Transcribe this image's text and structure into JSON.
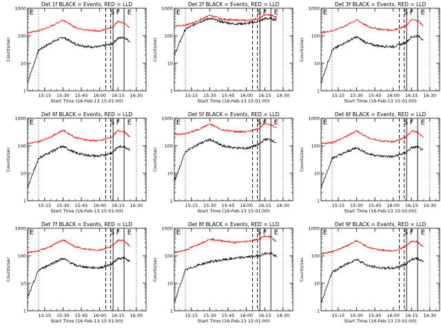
{
  "figure": {
    "rows": 3,
    "cols": 3,
    "ylabel": "Counts/sec",
    "xlabel": "Start Time (16-Feb-13 15:01:00)",
    "y_scale": "log",
    "ylim": [
      1,
      1000
    ],
    "y_ticks": [
      1,
      10,
      100,
      1000
    ],
    "y_tick_labels": [
      "1",
      "10",
      "100",
      "1000"
    ],
    "x_ticks": [
      "15:15",
      "15:30",
      "15:45",
      "16:00",
      "16:15",
      "16:30"
    ],
    "markers": [
      "E",
      "S",
      "F",
      "E"
    ],
    "colors": {
      "events": "#000000",
      "lld": "#ff0000",
      "axes": "#000000"
    }
  },
  "chart_data": [
    {
      "type": "line",
      "title": "Det  1f BLACK = Events, RED = LLD",
      "ylabel": "Counts/sec",
      "xlabel": "Start Time (16-Feb-13 15:01:00)",
      "y_scale": "log",
      "ylim": [
        1,
        1000
      ],
      "x": [
        "15:01",
        "15:10",
        "15:20",
        "15:30",
        "15:40",
        "15:50",
        "16:00",
        "16:10",
        "16:15",
        "16:20",
        "16:25"
      ],
      "series": [
        {
          "name": "Events",
          "values": [
            2,
            30,
            55,
            90,
            50,
            40,
            40,
            50,
            80,
            90,
            60
          ]
        },
        {
          "name": "LLD",
          "values": [
            130,
            150,
            220,
            380,
            200,
            160,
            150,
            200,
            330,
            300,
            190
          ]
        }
      ]
    },
    {
      "type": "line",
      "title": "Det  2f BLACK = Events, RED = LLD",
      "ylabel": "Counts/sec",
      "xlabel": "Start Time (16-Feb-13 15:01:00)",
      "y_scale": "log",
      "ylim": [
        1,
        1000
      ],
      "x": [
        "15:01",
        "15:10",
        "15:20",
        "15:30",
        "15:40",
        "15:50",
        "16:00",
        "16:10",
        "16:15",
        "16:20",
        "16:25"
      ],
      "series": [
        {
          "name": "Events",
          "values": [
            20,
            170,
            300,
            430,
            320,
            270,
            280,
            330,
            420,
            420,
            380
          ]
        },
        {
          "name": "LLD",
          "values": [
            230,
            240,
            340,
            560,
            400,
            370,
            360,
            420,
            580,
            560,
            460
          ]
        }
      ]
    },
    {
      "type": "line",
      "title": "Det  3f BLACK = Events, RED = LLD",
      "ylabel": "Counts/sec",
      "xlabel": "Start Time (16-Feb-13 15:01:00)",
      "y_scale": "log",
      "ylim": [
        1,
        1000
      ],
      "x": [
        "15:01",
        "15:10",
        "15:20",
        "15:30",
        "15:40",
        "15:50",
        "16:00",
        "16:10",
        "16:15",
        "16:20",
        "16:25"
      ],
      "series": [
        {
          "name": "Events",
          "values": [
            2,
            30,
            55,
            90,
            50,
            42,
            40,
            55,
            90,
            100,
            70
          ]
        },
        {
          "name": "LLD",
          "values": [
            130,
            150,
            220,
            380,
            210,
            170,
            160,
            220,
            380,
            360,
            220
          ]
        }
      ]
    },
    {
      "type": "line",
      "title": "Det  4f BLACK = Events, RED = LLD",
      "ylabel": "Counts/sec",
      "xlabel": "Start Time (16-Feb-13 15:01:00)",
      "y_scale": "log",
      "ylim": [
        1,
        1000
      ],
      "x": [
        "15:01",
        "15:10",
        "15:20",
        "15:30",
        "15:40",
        "15:50",
        "16:00",
        "16:10",
        "16:15",
        "16:20",
        "16:25"
      ],
      "series": [
        {
          "name": "Events",
          "values": [
            3,
            35,
            60,
            95,
            55,
            45,
            42,
            55,
            90,
            95,
            70
          ]
        },
        {
          "name": "LLD",
          "values": [
            120,
            140,
            210,
            370,
            200,
            160,
            150,
            210,
            350,
            330,
            200
          ]
        }
      ]
    },
    {
      "type": "line",
      "title": "Det  5f BLACK = Events, RED = LLD",
      "ylabel": "Counts/sec",
      "xlabel": "Start Time (16-Feb-13 15:01:00)",
      "y_scale": "log",
      "ylim": [
        1,
        1000
      ],
      "x": [
        "15:01",
        "15:10",
        "15:20",
        "15:30",
        "15:40",
        "15:50",
        "16:00",
        "16:10",
        "16:15",
        "16:20",
        "16:25"
      ],
      "series": [
        {
          "name": "Events",
          "values": [
            5,
            60,
            110,
            170,
            100,
            85,
            80,
            110,
            170,
            170,
            120
          ]
        },
        {
          "name": "LLD",
          "values": [
            260,
            270,
            380,
            620,
            380,
            330,
            320,
            420,
            640,
            600,
            420
          ]
        }
      ]
    },
    {
      "type": "line",
      "title": "Det  6f BLACK = Events, RED = LLD",
      "ylabel": "Counts/sec",
      "xlabel": "Start Time (16-Feb-13 15:01:00)",
      "y_scale": "log",
      "ylim": [
        1,
        1000
      ],
      "x": [
        "15:01",
        "15:10",
        "15:20",
        "15:30",
        "15:40",
        "15:50",
        "16:00",
        "16:10",
        "16:15",
        "16:20",
        "16:25"
      ],
      "series": [
        {
          "name": "Events",
          "values": [
            3,
            35,
            55,
            85,
            50,
            42,
            40,
            55,
            85,
            90,
            65
          ]
        },
        {
          "name": "LLD",
          "values": [
            120,
            130,
            200,
            350,
            190,
            150,
            140,
            200,
            340,
            320,
            190
          ]
        }
      ]
    },
    {
      "type": "line",
      "title": "Det  7f BLACK = Events, RED = LLD",
      "ylabel": "Counts/sec",
      "xlabel": "Start Time (16-Feb-13 15:01:00)",
      "y_scale": "log",
      "ylim": [
        1,
        1000
      ],
      "x": [
        "15:01",
        "15:10",
        "15:20",
        "15:30",
        "15:40",
        "15:50",
        "16:00",
        "16:10",
        "16:15",
        "16:20",
        "16:25"
      ],
      "series": [
        {
          "name": "Events",
          "values": [
            3,
            30,
            50,
            80,
            45,
            38,
            36,
            50,
            80,
            85,
            60
          ]
        },
        {
          "name": "LLD",
          "values": [
            130,
            150,
            220,
            380,
            210,
            170,
            160,
            220,
            370,
            350,
            210
          ]
        }
      ]
    },
    {
      "type": "line",
      "title": "Det  8f BLACK = Events, RED = LLD",
      "ylabel": "Counts/sec",
      "xlabel": "Start Time (16-Feb-13 15:01:00)",
      "y_scale": "log",
      "ylim": [
        1,
        1000
      ],
      "x": [
        "15:01",
        "15:10",
        "15:20",
        "15:30",
        "15:40",
        "15:50",
        "16:00",
        "16:10",
        "16:15",
        "16:20",
        "16:25"
      ],
      "series": [
        {
          "name": "Events",
          "values": [
            2,
            30,
            45,
            60,
            70,
            80,
            90,
            100,
            120,
            120,
            90
          ]
        },
        {
          "name": "LLD",
          "values": [
            130,
            160,
            250,
            400,
            350,
            300,
            330,
            400,
            520,
            480,
            300
          ]
        }
      ]
    },
    {
      "type": "line",
      "title": "Det  9f BLACK = Events, RED = LLD",
      "ylabel": "Counts/sec",
      "xlabel": "Start Time (16-Feb-13 15:01:00)",
      "y_scale": "log",
      "ylim": [
        1,
        1000
      ],
      "x": [
        "15:01",
        "15:10",
        "15:20",
        "15:30",
        "15:40",
        "15:50",
        "16:00",
        "16:10",
        "16:15",
        "16:20",
        "16:25"
      ],
      "series": [
        {
          "name": "Events",
          "values": [
            2,
            25,
            45,
            75,
            42,
            36,
            35,
            48,
            75,
            80,
            55
          ]
        },
        {
          "name": "LLD",
          "values": [
            120,
            140,
            210,
            350,
            200,
            160,
            150,
            210,
            340,
            320,
            200
          ]
        }
      ]
    }
  ]
}
